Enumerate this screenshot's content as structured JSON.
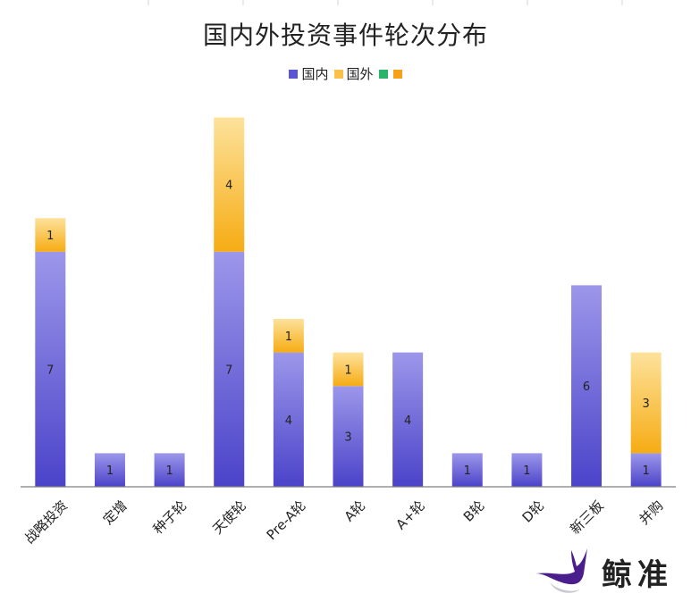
{
  "chart_data": {
    "type": "bar",
    "stacked": true,
    "title": "国内外投资事件轮次分布",
    "categories": [
      "战略投资",
      "定增",
      "种子轮",
      "天使轮",
      "Pre-A轮",
      "A轮",
      "A+轮",
      "B轮",
      "D轮",
      "新三板",
      "并购"
    ],
    "series": [
      {
        "name": "国内",
        "values": [
          7,
          1,
          1,
          7,
          4,
          3,
          4,
          1,
          1,
          6,
          1
        ],
        "color": "#6b63d9"
      },
      {
        "name": "国外",
        "values": [
          1,
          0,
          0,
          4,
          1,
          1,
          0,
          0,
          0,
          0,
          3
        ],
        "color": "#f9bd3a"
      },
      {
        "name": "",
        "values": [
          0,
          0,
          0,
          0,
          0,
          0,
          0,
          0,
          0,
          0,
          0
        ],
        "color": "#29b36b"
      },
      {
        "name": "",
        "values": [
          0,
          0,
          0,
          0,
          0,
          0,
          0,
          0,
          0,
          0,
          0
        ],
        "color": "#f5a21a"
      }
    ],
    "ylim": [
      0,
      11
    ],
    "grid": false,
    "legend_position": "top"
  },
  "brand": {
    "name": "鲸准",
    "logo_icon": "whale-tail-logo"
  }
}
